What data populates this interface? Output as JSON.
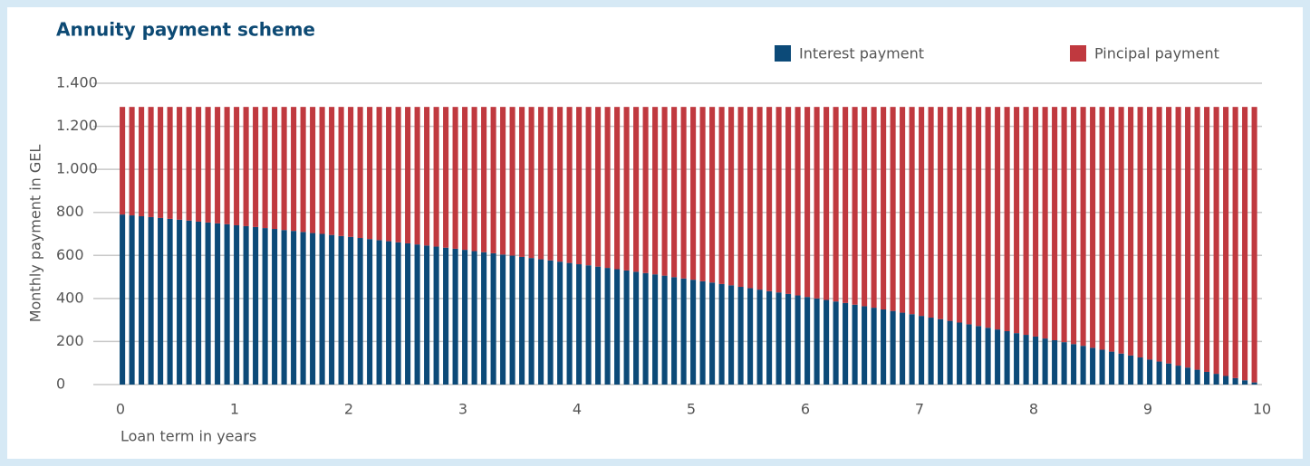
{
  "chart_data": {
    "type": "stacked_bar",
    "title": "Annuity payment scheme",
    "y_label": "Monthly payment in GEL",
    "x_label": "Loan term in years",
    "categories": [
      null,
      null,
      null,
      null,
      null,
      null,
      null,
      null,
      null,
      null,
      null,
      null,
      null,
      null,
      null,
      null,
      null,
      null,
      null,
      null,
      null,
      null,
      null,
      null,
      null,
      null,
      null,
      null,
      null,
      null,
      null,
      null,
      null,
      null,
      null,
      null,
      null,
      null,
      null,
      null,
      null,
      null,
      null,
      null,
      null,
      null,
      null,
      null,
      null,
      null,
      null,
      null,
      null,
      null,
      null,
      null,
      null,
      null,
      null,
      null,
      null,
      null,
      null,
      null,
      null,
      null,
      null,
      null,
      null,
      null,
      null,
      null,
      null,
      null,
      null,
      null,
      null,
      null,
      null,
      null,
      null,
      null,
      null,
      null,
      null,
      null,
      null,
      null,
      null,
      null,
      null,
      null,
      null,
      null,
      null,
      null,
      null,
      null,
      null,
      null,
      null,
      null,
      null,
      null,
      null,
      null,
      null,
      null,
      null,
      null,
      null,
      null,
      null,
      null,
      null,
      null,
      null,
      null,
      null,
      null
    ],
    "series": [
      {
        "name": "Interest payment",
        "color": "#0c4a78",
        "values": [
          790,
          786,
          782,
          778,
          774,
          770,
          766,
          762,
          757,
          753,
          749,
          745,
          740,
          736,
          732,
          727,
          723,
          718,
          714,
          709,
          704,
          700,
          695,
          690,
          686,
          681,
          676,
          671,
          666,
          661,
          656,
          651,
          646,
          641,
          636,
          631,
          626,
          620,
          615,
          610,
          604,
          599,
          593,
          588,
          582,
          577,
          571,
          565,
          559,
          554,
          548,
          542,
          536,
          530,
          524,
          518,
          512,
          506,
          499,
          493,
          487,
          480,
          474,
          467,
          461,
          454,
          448,
          441,
          434,
          428,
          421,
          414,
          407,
          400,
          393,
          386,
          379,
          371,
          364,
          357,
          349,
          342,
          334,
          327,
          319,
          311,
          304,
          296,
          288,
          280,
          272,
          264,
          256,
          248,
          239,
          231,
          223,
          214,
          206,
          197,
          188,
          180,
          171,
          162,
          153,
          144,
          135,
          126,
          116,
          107,
          98,
          88,
          79,
          69,
          59,
          50,
          40,
          30,
          20,
          10
        ]
      },
      {
        "name": "Pincipal payment",
        "color": "#c0393f",
        "values": [
          500,
          504,
          508,
          512,
          516,
          520,
          524,
          528,
          533,
          537,
          541,
          545,
          550,
          554,
          558,
          563,
          567,
          572,
          576,
          581,
          586,
          590,
          595,
          600,
          604,
          609,
          614,
          619,
          624,
          629,
          634,
          639,
          644,
          649,
          654,
          659,
          664,
          670,
          675,
          680,
          686,
          691,
          697,
          702,
          708,
          713,
          719,
          725,
          731,
          736,
          742,
          748,
          754,
          760,
          766,
          772,
          778,
          784,
          791,
          797,
          803,
          810,
          816,
          823,
          829,
          836,
          842,
          849,
          856,
          862,
          869,
          876,
          883,
          890,
          897,
          904,
          911,
          919,
          926,
          933,
          941,
          948,
          956,
          963,
          971,
          979,
          986,
          994,
          1002,
          1010,
          1018,
          1026,
          1034,
          1042,
          1051,
          1059,
          1067,
          1076,
          1084,
          1093,
          1102,
          1110,
          1119,
          1128,
          1137,
          1146,
          1155,
          1164,
          1174,
          1183,
          1192,
          1202,
          1211,
          1221,
          1231,
          1240,
          1250,
          1260,
          1270,
          1280
        ]
      }
    ],
    "ylim": [
      0,
      1400
    ],
    "yticks": [
      0,
      200,
      400,
      600,
      800,
      {
        "value": 1000,
        "label": "1.000"
      },
      {
        "value": 1200,
        "label": "1.200"
      },
      {
        "value": 1400,
        "label": "1.400"
      }
    ],
    "xlim": [
      0,
      10
    ],
    "xticks": [
      0,
      1,
      2,
      3,
      4,
      5,
      6,
      7,
      8,
      9,
      10
    ],
    "grid": true,
    "legend": "top-right"
  }
}
